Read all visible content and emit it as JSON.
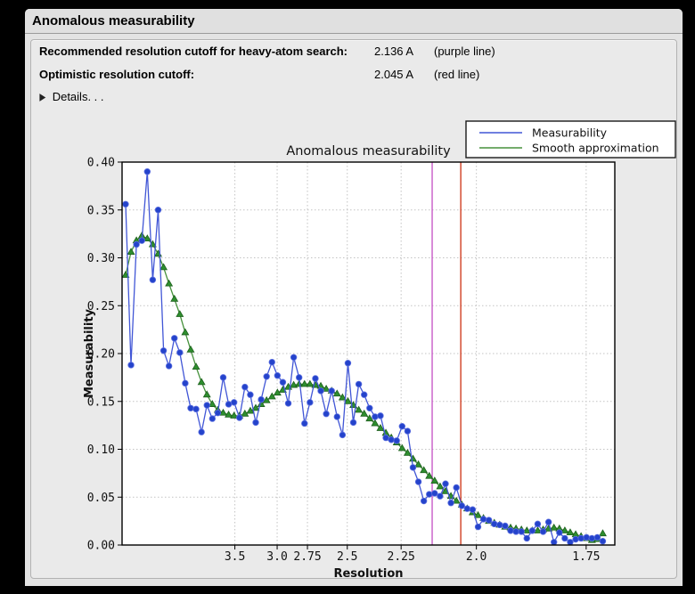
{
  "window": {
    "title": "Anomalous measurability"
  },
  "summary": {
    "rows": [
      {
        "label": "Recommended resolution cutoff for heavy-atom search:",
        "value": "2.136 A",
        "note": "(purple line)"
      },
      {
        "label": "Optimistic resolution cutoff:",
        "value": "2.045 A",
        "note": "(red line)"
      }
    ],
    "disclosure_icon": "right-pointing-triangle",
    "details_label": "Details. . ."
  },
  "chart_data": {
    "type": "line",
    "title": "Anomalous measurability",
    "xlabel": "Resolution",
    "ylabel": "Measurability",
    "x_axis": {
      "note": "resolution in Angstrom, axis linear in s=1/d^2, d decreasing to the right",
      "tick_labels": [
        "3.5",
        "3.0",
        "2.75",
        "2.5",
        "2.25",
        "2.0",
        "1.75"
      ],
      "s_min": 0.003,
      "s_max": 0.3465,
      "s_start": 0.00546,
      "s_step": 0.00378
    },
    "y_axis": {
      "tick_labels": [
        "0.00",
        "0.05",
        "0.10",
        "0.15",
        "0.20",
        "0.25",
        "0.30",
        "0.35",
        "0.40"
      ],
      "ylim": [
        0.0,
        0.4
      ]
    },
    "grid": "dotted",
    "legend": {
      "position": "upper right"
    },
    "vlines": [
      {
        "resolution": 2.136,
        "color": "#c44ec4",
        "meaning": "recommended cutoff (purple line)"
      },
      {
        "resolution": 2.045,
        "color": "#cc2e10",
        "meaning": "optimistic cutoff (red line)"
      }
    ],
    "series": [
      {
        "name": "Measurability",
        "line_color": "#4156d6",
        "marker": "circle",
        "marker_color": "#2443cb",
        "marker_edge": "#5c6fe0",
        "values": [
          0.356,
          0.188,
          0.314,
          0.318,
          0.39,
          0.277,
          0.35,
          0.203,
          0.187,
          0.216,
          0.201,
          0.169,
          0.143,
          0.142,
          0.118,
          0.146,
          0.132,
          0.138,
          0.175,
          0.147,
          0.149,
          0.133,
          0.165,
          0.157,
          0.128,
          0.152,
          0.176,
          0.191,
          0.177,
          0.17,
          0.148,
          0.196,
          0.175,
          0.127,
          0.149,
          0.174,
          0.161,
          0.137,
          0.161,
          0.134,
          0.115,
          0.19,
          0.128,
          0.168,
          0.157,
          0.143,
          0.134,
          0.135,
          0.112,
          0.11,
          0.109,
          0.124,
          0.119,
          0.081,
          0.066,
          0.046,
          0.053,
          0.054,
          0.051,
          0.064,
          0.044,
          0.06,
          0.041,
          0.038,
          0.037,
          0.019,
          0.027,
          0.026,
          0.022,
          0.021,
          0.02,
          0.015,
          0.014,
          0.014,
          0.007,
          0.015,
          0.022,
          0.014,
          0.024,
          0.003,
          0.013,
          0.007,
          0.003,
          0.006,
          0.007,
          0.008,
          0.007,
          0.008,
          0.004
        ]
      },
      {
        "name": "Smooth approximation",
        "line_color": "#46913c",
        "marker": "triangle",
        "marker_color": "#2e8e2e",
        "marker_edge": "#1d5f1d",
        "values": [
          0.282,
          0.306,
          0.318,
          0.323,
          0.32,
          0.314,
          0.304,
          0.29,
          0.273,
          0.257,
          0.241,
          0.222,
          0.204,
          0.186,
          0.17,
          0.157,
          0.147,
          0.141,
          0.138,
          0.136,
          0.135,
          0.135,
          0.137,
          0.14,
          0.143,
          0.147,
          0.151,
          0.155,
          0.159,
          0.162,
          0.165,
          0.167,
          0.168,
          0.168,
          0.168,
          0.167,
          0.166,
          0.163,
          0.161,
          0.158,
          0.154,
          0.15,
          0.146,
          0.141,
          0.137,
          0.132,
          0.127,
          0.122,
          0.117,
          0.112,
          0.107,
          0.101,
          0.096,
          0.09,
          0.084,
          0.078,
          0.072,
          0.067,
          0.061,
          0.056,
          0.051,
          0.046,
          0.042,
          0.038,
          0.034,
          0.031,
          0.028,
          0.025,
          0.023,
          0.021,
          0.019,
          0.018,
          0.017,
          0.016,
          0.015,
          0.015,
          0.015,
          0.016,
          0.017,
          0.018,
          0.017,
          0.015,
          0.013,
          0.011,
          0.009,
          0.007,
          0.005,
          0.006,
          0.012
        ]
      }
    ]
  },
  "colors": {
    "screen_background": "#000000",
    "window_background": "#e3e3e3",
    "groupbox_background": "#eaeaea",
    "plot_background": "#ffffff",
    "grid_color": "#c3c3c3"
  }
}
